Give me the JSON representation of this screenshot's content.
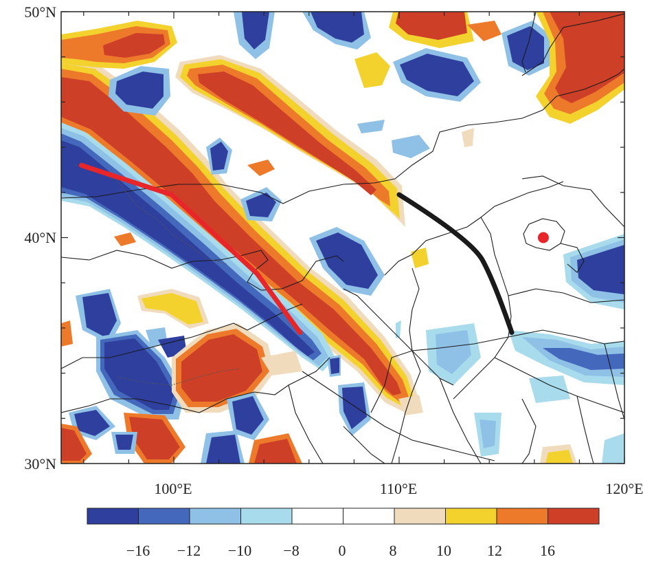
{
  "map": {
    "lat_labels": [
      "50°N",
      "40°N",
      "30°N"
    ],
    "lon_labels": [
      "100°E",
      "110°E",
      "120°E"
    ],
    "extent": {
      "lon_min": 95,
      "lon_max": 120,
      "lat_min": 30,
      "lat_max": 50
    },
    "marker": {
      "lon": 116.4,
      "lat": 40.0,
      "color": "#e8262a"
    },
    "red_track": {
      "color": "#e8262a",
      "points": [
        [
          95.9,
          43.2
        ],
        [
          99.9,
          41.9
        ],
        [
          103.7,
          38.4
        ],
        [
          105.6,
          35.8
        ]
      ]
    },
    "black_track": {
      "color": "#1a1a1a",
      "points": [
        [
          110.0,
          41.9
        ],
        [
          113.2,
          39.9
        ],
        [
          114.2,
          38.1
        ],
        [
          115.0,
          35.8
        ]
      ]
    }
  },
  "colorbar": {
    "colors": [
      "#2e3f9e",
      "#4468bb",
      "#8fc0e6",
      "#a8dbeb",
      "#ffffff",
      "#ffffff",
      "#f0dcbc",
      "#f4d22e",
      "#ed7a2b",
      "#cd3f27"
    ],
    "labels": [
      "−16",
      "−12",
      "−10",
      "−8",
      "0",
      "8",
      "10",
      "12",
      "16"
    ]
  }
}
